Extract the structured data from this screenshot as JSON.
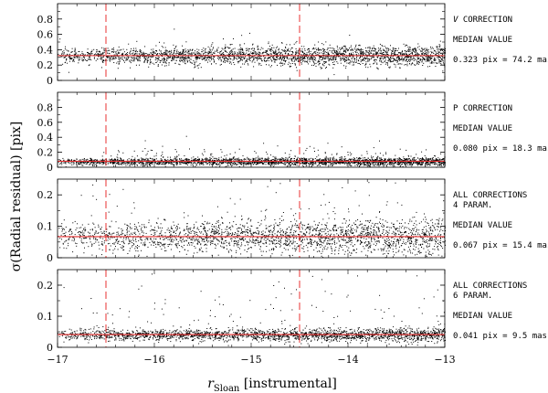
{
  "chart_data": {
    "type": "scatter",
    "xlabel": "r",
    "xlabel_sub": "Sloan",
    "xlabel_suffix": " [instrumental]",
    "ylabel": "σ(Radial residual) [pix]",
    "xlim": [
      -17,
      -13
    ],
    "x_ticks": [
      -17,
      -16,
      -15,
      -14,
      -13
    ],
    "x_tick_labels": [
      "−17",
      "−16",
      "−15",
      "−14",
      "−13"
    ],
    "vertical_dashed_lines_x": [
      -16.5,
      -14.5
    ],
    "colors": {
      "points": "#000000",
      "median_line": "#e83030",
      "dashed_lines": "#e83030",
      "frame": "#000000"
    },
    "panels": [
      {
        "ylim": [
          0,
          1.0
        ],
        "y_ticks": [
          0,
          0.2,
          0.4,
          0.6,
          0.8
        ],
        "y_tick_labels": [
          "0",
          "0.2",
          "0.4",
          "0.6",
          "0.8"
        ],
        "median": 0.323,
        "scatter_sigma": 0.05,
        "outlier_max": 0.55,
        "n_points": 2800,
        "annotation": {
          "title_lines": [
            "V CORRECTION"
          ],
          "title_italic_first_char": true,
          "median_label": "MEDIAN VALUE",
          "value_label": "0.323 pix = 74.2 mas"
        }
      },
      {
        "ylim": [
          0,
          1.0
        ],
        "y_ticks": [
          0,
          0.2,
          0.4,
          0.6,
          0.8
        ],
        "y_tick_labels": [
          "0",
          "0.2",
          "0.4",
          "0.6",
          "0.8"
        ],
        "median": 0.08,
        "scatter_sigma": 0.02,
        "outlier_max": 0.3,
        "n_points": 2800,
        "annotation": {
          "title_lines": [
            "P CORRECTION"
          ],
          "title_italic_first_char": false,
          "median_label": "MEDIAN VALUE",
          "value_label": "0.080 pix = 18.3 mas"
        }
      },
      {
        "ylim": [
          0,
          0.25
        ],
        "y_ticks": [
          0,
          0.1,
          0.2
        ],
        "y_tick_labels": [
          "0",
          "0.1",
          "0.2"
        ],
        "median": 0.067,
        "scatter_sigma": 0.022,
        "outlier_max": 0.24,
        "n_points": 2400,
        "annotation": {
          "title_lines": [
            "ALL CORRECTIONS",
            "4 PARAM."
          ],
          "title_italic_first_char": false,
          "median_label": "MEDIAN VALUE",
          "value_label": "0.067 pix = 15.4 mas"
        }
      },
      {
        "ylim": [
          0,
          0.25
        ],
        "y_ticks": [
          0,
          0.1,
          0.2
        ],
        "y_tick_labels": [
          "0",
          "0.1",
          "0.2"
        ],
        "median": 0.041,
        "scatter_sigma": 0.008,
        "outlier_max": 0.24,
        "n_points": 2400,
        "annotation": {
          "title_lines": [
            "ALL CORRECTIONS",
            "6 PARAM."
          ],
          "title_italic_first_char": false,
          "median_label": "MEDIAN VALUE",
          "value_label": "0.041 pix = 9.5 mas"
        }
      }
    ]
  }
}
